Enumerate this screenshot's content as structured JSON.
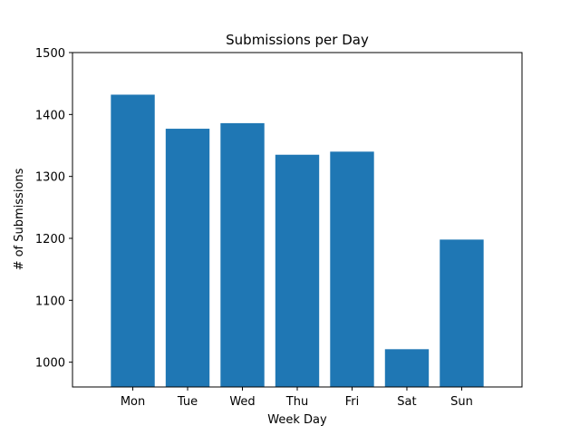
{
  "chart_data": {
    "type": "bar",
    "title": "Submissions per Day",
    "xlabel": "Week Day",
    "ylabel": "# of Submissions",
    "categories": [
      "Mon",
      "Tue",
      "Wed",
      "Thu",
      "Fri",
      "Sat",
      "Sun"
    ],
    "values": [
      1432,
      1377,
      1386,
      1335,
      1340,
      1021,
      1198
    ],
    "ylim": [
      960,
      1500
    ],
    "yticks": [
      1000,
      1100,
      1200,
      1300,
      1400,
      1500
    ],
    "grid": false,
    "bar_color": "#1f77b4"
  }
}
